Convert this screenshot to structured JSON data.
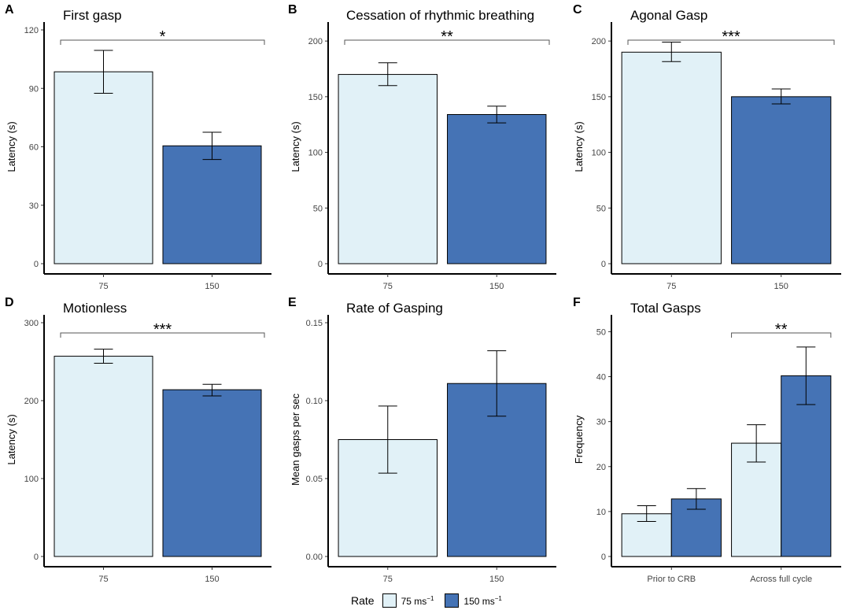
{
  "colors": {
    "light": "#e1f1f7",
    "dark": "#4573b5",
    "border": "#000000",
    "bracket": "#555555"
  },
  "legend": {
    "title": "Rate",
    "entries": [
      {
        "label_base": "75 ms",
        "label_sup": "−1",
        "color": "#e1f1f7"
      },
      {
        "label_base": "150 ms",
        "label_sup": "−1",
        "color": "#4573b5"
      }
    ]
  },
  "chart_data": [
    {
      "letter": "A",
      "type": "bar",
      "title": "First gasp",
      "ylabel": "Latency (s)",
      "xlabel": "",
      "categories": [
        "75",
        "150"
      ],
      "values": [
        98.5,
        60.5
      ],
      "err_low": [
        87.5,
        53.5
      ],
      "err_high": [
        109.5,
        67.5
      ],
      "ylim": [
        0,
        120
      ],
      "yticks": [
        0,
        30,
        60,
        90,
        120
      ],
      "significance": {
        "label": "*",
        "from": 0,
        "to": 1,
        "y": 115
      }
    },
    {
      "letter": "B",
      "type": "bar",
      "title": "Cessation of rhythmic breathing",
      "ylabel": "Latency (s)",
      "xlabel": "",
      "categories": [
        "75",
        "150"
      ],
      "values": [
        170,
        134
      ],
      "err_low": [
        160,
        126.5
      ],
      "err_high": [
        180.5,
        141.5
      ],
      "ylim": [
        0,
        210
      ],
      "yticks": [
        0,
        50,
        100,
        150,
        200
      ],
      "significance": {
        "label": "**",
        "from": 0,
        "to": 1,
        "y": 205
      }
    },
    {
      "letter": "C",
      "type": "bar",
      "title": "Agonal Gasp",
      "ylabel": "Latency (s)",
      "xlabel": "",
      "categories": [
        "75",
        "150"
      ],
      "values": [
        190,
        150
      ],
      "err_low": [
        181.5,
        143.5
      ],
      "err_high": [
        199,
        157
      ],
      "ylim": [
        0,
        210
      ],
      "yticks": [
        0,
        50,
        100,
        150,
        200
      ],
      "significance": {
        "label": "***",
        "from": 0,
        "to": 1,
        "y": 210
      }
    },
    {
      "letter": "D",
      "type": "bar",
      "title": "Motionless",
      "ylabel": "Latency (s)",
      "xlabel": "",
      "categories": [
        "75",
        "150"
      ],
      "values": [
        257,
        214
      ],
      "err_low": [
        248,
        206
      ],
      "err_high": [
        266,
        221
      ],
      "ylim": [
        0,
        300
      ],
      "yticks": [
        0,
        100,
        200,
        300
      ],
      "significance": {
        "label": "***",
        "from": 0,
        "to": 1,
        "y": 300
      }
    },
    {
      "letter": "E",
      "type": "bar",
      "title": "Rate of Gasping",
      "ylabel": "Mean gasps per sec",
      "xlabel": "",
      "categories": [
        "75",
        "150"
      ],
      "values": [
        0.075,
        0.111
      ],
      "err_low": [
        0.0535,
        0.09
      ],
      "err_high": [
        0.0965,
        0.132
      ],
      "ylim": [
        0,
        0.15
      ],
      "yticks": [
        0,
        0.05,
        0.1,
        0.15
      ],
      "ytick_labels": [
        "0.00",
        "0.05",
        "0.10",
        "0.15"
      ]
    },
    {
      "letter": "F",
      "type": "bar",
      "title": "Total Gasps",
      "ylabel": "Frequency",
      "xlabel": "",
      "categories": [
        "Prior to CRB",
        "Across full cycle"
      ],
      "series": [
        {
          "name": "75 ms⁻¹",
          "values": [
            9.5,
            25.2
          ],
          "err_low": [
            7.8,
            21
          ],
          "err_high": [
            11.3,
            29.3
          ]
        },
        {
          "name": "150 ms⁻¹",
          "values": [
            12.8,
            40.2
          ],
          "err_low": [
            10.5,
            33.8
          ],
          "err_high": [
            15.1,
            46.6
          ]
        }
      ],
      "ylim": [
        0,
        52
      ],
      "yticks": [
        0,
        10,
        20,
        30,
        40,
        50
      ],
      "significance": {
        "label": "**",
        "group": 1,
        "y": 50
      }
    }
  ]
}
